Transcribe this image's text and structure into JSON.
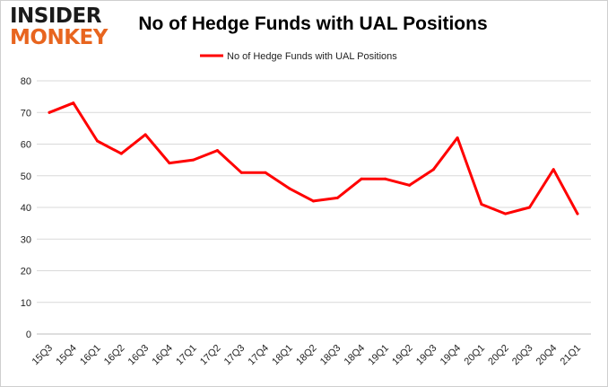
{
  "logo": {
    "line1": "INSIDER",
    "line2": "MONKEY"
  },
  "chart_data": {
    "type": "line",
    "title": "No of Hedge Funds with UAL Positions",
    "xlabel": "",
    "ylabel": "",
    "categories": [
      "15Q3",
      "15Q4",
      "16Q1",
      "16Q2",
      "16Q3",
      "16Q4",
      "17Q1",
      "17Q2",
      "17Q3",
      "17Q4",
      "18Q1",
      "18Q2",
      "18Q3",
      "18Q4",
      "19Q1",
      "19Q2",
      "19Q3",
      "19Q4",
      "20Q1",
      "20Q2",
      "20Q3",
      "20Q4",
      "21Q1"
    ],
    "series": [
      {
        "name": "No of Hedge Funds with UAL Positions",
        "values": [
          70,
          73,
          61,
          57,
          63,
          54,
          55,
          58,
          51,
          51,
          46,
          42,
          43,
          49,
          49,
          47,
          52,
          62,
          41,
          38,
          40,
          52,
          38
        ]
      }
    ],
    "ylim": [
      0,
      80
    ],
    "yticks": [
      0,
      10,
      20,
      30,
      40,
      50,
      60,
      70,
      80
    ],
    "grid": true,
    "legend": "top-center",
    "line_color": "#ff0000",
    "grid_color": "#d9d9d9"
  }
}
